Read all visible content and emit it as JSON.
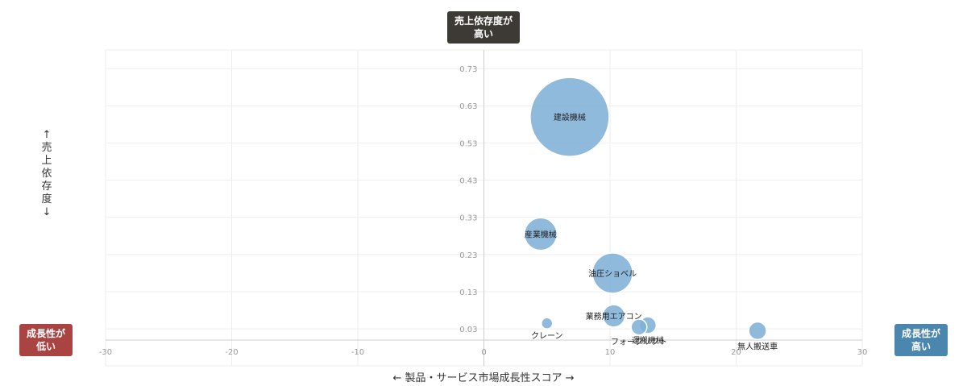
{
  "badges": {
    "top": [
      "売上依存度が",
      "高い"
    ],
    "left": [
      "成長性が",
      "低い"
    ],
    "right": [
      "成長性が",
      "高い"
    ]
  },
  "axis_labels": {
    "y": [
      "↑",
      "売",
      "上",
      "依",
      "存",
      "度",
      "↓"
    ],
    "x": "← 製品・サービス市場成長性スコア →"
  },
  "colors": {
    "bubble": "#7fb1d6",
    "grid": "#eeeeee",
    "axis": "#cccccc",
    "tick": "#999999",
    "badge_top": "#3d3935",
    "badge_left": "#a94442",
    "badge_right": "#4a86ad"
  },
  "chart_data": {
    "type": "scatter",
    "variant": "bubble",
    "xlim": [
      -30,
      30
    ],
    "ylim": [
      0.0,
      0.78
    ],
    "x_ticks": [
      -30,
      -20,
      -10,
      0,
      10,
      20,
      30
    ],
    "y_ticks": [
      0.03,
      0.13,
      0.23,
      0.33,
      0.43,
      0.53,
      0.63,
      0.73
    ],
    "grid": true,
    "points": [
      {
        "label": "建設機械",
        "x": 6.8,
        "y": 0.6,
        "size": 100
      },
      {
        "label": "産業機械",
        "x": 4.5,
        "y": 0.285,
        "size": 17
      },
      {
        "label": "油圧ショベル",
        "x": 10.2,
        "y": 0.18,
        "size": 26
      },
      {
        "label": "業務用エアコン",
        "x": 10.3,
        "y": 0.065,
        "size": 8
      },
      {
        "label": "運搬機械",
        "x": 13.0,
        "y": 0.04,
        "size": 4.5
      },
      {
        "label": "フォークリフト",
        "x": 12.3,
        "y": 0.035,
        "size": 4
      },
      {
        "label": "クレーン",
        "x": 5.0,
        "y": 0.045,
        "size": 2
      },
      {
        "label": "無人搬送車",
        "x": 21.7,
        "y": 0.025,
        "size": 5
      }
    ]
  }
}
